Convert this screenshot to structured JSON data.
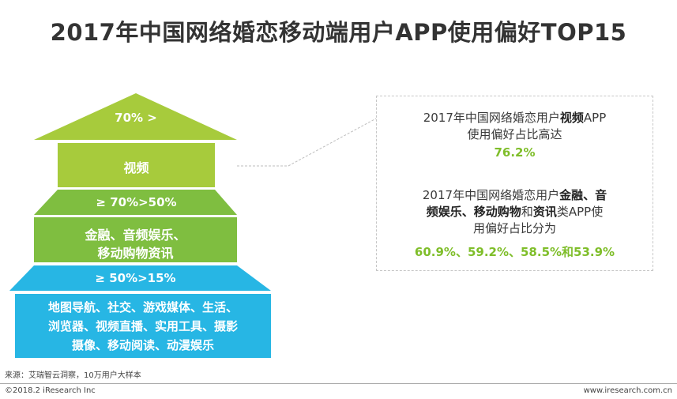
{
  "title": "2017年中国网络婚恋移动端用户APP使用偏好TOP15",
  "chart_data": {
    "type": "pyramid",
    "title": "2017年中国网络婚恋移动端用户APP使用偏好TOP15",
    "tiers": [
      {
        "range": "70% >",
        "categories": "视频",
        "color": "#a7cb3c"
      },
      {
        "range": "≥ 70%>50%",
        "categories_line1": "金融、音频娱乐、",
        "categories_line2": "移动购物资讯",
        "color": "#7fbe40"
      },
      {
        "range": "≥ 50%>15%",
        "categories_line1": "地图导航、社交、游戏媒体、生活、",
        "categories_line2": "浏览器、视频直播、实用工具、摄影",
        "categories_line3": "摄像、移动阅读、动漫娱乐",
        "color": "#27b6e4"
      }
    ],
    "values": {
      "视频": 76.2,
      "金融": 60.9,
      "音频娱乐": 59.2,
      "移动购物": 58.5,
      "资讯": 53.9
    }
  },
  "callout": {
    "p1_a": "2017年中国网络婚恋用户",
    "p1_b": "视频",
    "p1_c": "APP",
    "p1_line2": "使用偏好占比高达",
    "p1_value": "76.2%",
    "p2_a": "2017年中国网络婚恋用户",
    "p2_b": "金融、音",
    "p2_c": "频娱乐、移动购物",
    "p2_d": "和",
    "p2_e": "资讯",
    "p2_f": "类APP使",
    "p2_line3": "用偏好占比分为",
    "p2_values": "60.9%、59.2%、58.5%和53.9%"
  },
  "source": "来源：艾瑞智云洞察，10万用户大样本",
  "footer_left": "©2018.2 iResearch Inc",
  "footer_right": "www.iresearch.com.cn",
  "colors": {
    "green_light": "#a7cb3c",
    "green": "#7fbe40",
    "cyan": "#27b6e4",
    "value_green": "#7fbe2a"
  }
}
